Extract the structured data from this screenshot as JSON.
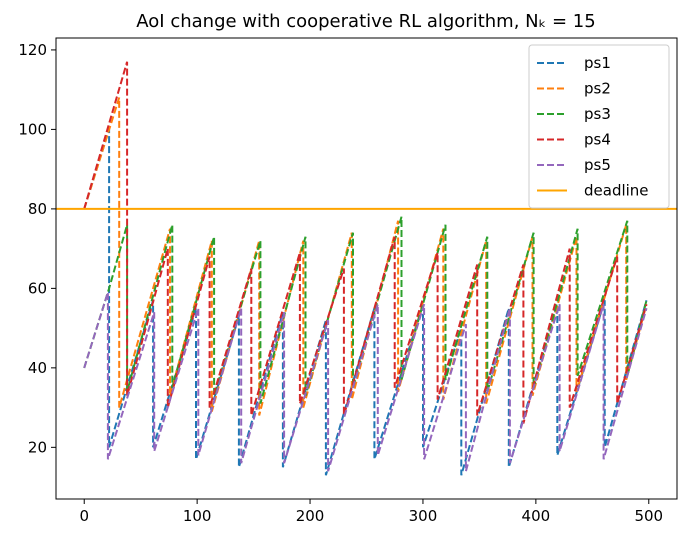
{
  "chart_data": {
    "type": "line",
    "title": "AoI change with cooperative RL algorithm, Nₖ = 15",
    "xlabel": "",
    "ylabel": "",
    "xlim": [
      -25,
      525
    ],
    "ylim": [
      7,
      123
    ],
    "xticks": [
      0,
      100,
      200,
      300,
      400,
      500
    ],
    "yticks": [
      20,
      40,
      60,
      80,
      100,
      120
    ],
    "grid": false,
    "legend_position": "top-right",
    "deadline": {
      "name": "deadline",
      "value": 80,
      "color": "#ffa500"
    },
    "series": [
      {
        "name": "ps1",
        "color": "#1f77b4",
        "dash": true,
        "points": [
          [
            0,
            80
          ],
          [
            22,
            100
          ],
          [
            22,
            20
          ],
          [
            61,
            57
          ],
          [
            61,
            20
          ],
          [
            99,
            55
          ],
          [
            99,
            17
          ],
          [
            137,
            53
          ],
          [
            137,
            15
          ],
          [
            176,
            54
          ],
          [
            176,
            15
          ],
          [
            214,
            52
          ],
          [
            214,
            13
          ],
          [
            257,
            55
          ],
          [
            257,
            17
          ],
          [
            300,
            56
          ],
          [
            300,
            20
          ],
          [
            334,
            50
          ],
          [
            334,
            13
          ],
          [
            376,
            55
          ],
          [
            376,
            15
          ],
          [
            419,
            56
          ],
          [
            419,
            18
          ],
          [
            461,
            57
          ],
          [
            461,
            20
          ],
          [
            498,
            57
          ]
        ]
      },
      {
        "name": "ps2",
        "color": "#ff7f0e",
        "dash": true,
        "points": [
          [
            0,
            80
          ],
          [
            31,
            108
          ],
          [
            31,
            30
          ],
          [
            76,
            75
          ],
          [
            76,
            33
          ],
          [
            113,
            72
          ],
          [
            113,
            29
          ],
          [
            155,
            72
          ],
          [
            155,
            28
          ],
          [
            194,
            72
          ],
          [
            194,
            30
          ],
          [
            237,
            74
          ],
          [
            237,
            32
          ],
          [
            278,
            77
          ],
          [
            278,
            34
          ],
          [
            318,
            75
          ],
          [
            318,
            32
          ],
          [
            356,
            72
          ],
          [
            356,
            31
          ],
          [
            397,
            73
          ],
          [
            397,
            33
          ],
          [
            436,
            73
          ],
          [
            436,
            34
          ],
          [
            480,
            76
          ],
          [
            480,
            37
          ],
          [
            498,
            56
          ]
        ]
      },
      {
        "name": "ps3",
        "color": "#2ca02c",
        "dash": true,
        "points": [
          [
            0,
            40
          ],
          [
            22,
            60
          ],
          [
            38,
            76
          ],
          [
            38,
            34
          ],
          [
            78,
            76
          ],
          [
            78,
            35
          ],
          [
            115,
            73
          ],
          [
            115,
            33
          ],
          [
            156,
            72
          ],
          [
            156,
            31
          ],
          [
            196,
            73
          ],
          [
            196,
            33
          ],
          [
            238,
            74
          ],
          [
            238,
            35
          ],
          [
            281,
            78
          ],
          [
            281,
            37
          ],
          [
            320,
            76
          ],
          [
            320,
            37
          ],
          [
            357,
            73
          ],
          [
            357,
            34
          ],
          [
            398,
            74
          ],
          [
            398,
            35
          ],
          [
            437,
            75
          ],
          [
            437,
            38
          ],
          [
            481,
            77
          ],
          [
            481,
            38
          ],
          [
            498,
            57
          ]
        ]
      },
      {
        "name": "ps4",
        "color": "#d62728",
        "dash": true,
        "points": [
          [
            0,
            80
          ],
          [
            38,
            117
          ],
          [
            38,
            33
          ],
          [
            74,
            70
          ],
          [
            74,
            30
          ],
          [
            111,
            68
          ],
          [
            111,
            30
          ],
          [
            148,
            65
          ],
          [
            148,
            28
          ],
          [
            191,
            69
          ],
          [
            191,
            31
          ],
          [
            230,
            65
          ],
          [
            230,
            28
          ],
          [
            275,
            73
          ],
          [
            275,
            35
          ],
          [
            313,
            69
          ],
          [
            313,
            32
          ],
          [
            348,
            66
          ],
          [
            348,
            28
          ],
          [
            389,
            66
          ],
          [
            389,
            26
          ],
          [
            430,
            70
          ],
          [
            430,
            30
          ],
          [
            472,
            68
          ],
          [
            472,
            31
          ],
          [
            498,
            56
          ]
        ]
      },
      {
        "name": "ps5",
        "color": "#9467bd",
        "dash": true,
        "points": [
          [
            0,
            40
          ],
          [
            21,
            59
          ],
          [
            21,
            17
          ],
          [
            62,
            54
          ],
          [
            62,
            19
          ],
          [
            101,
            55
          ],
          [
            101,
            18
          ],
          [
            139,
            55
          ],
          [
            139,
            16
          ],
          [
            177,
            54
          ],
          [
            177,
            16
          ],
          [
            216,
            52
          ],
          [
            216,
            14
          ],
          [
            260,
            56
          ],
          [
            260,
            18
          ],
          [
            301,
            56
          ],
          [
            301,
            17
          ],
          [
            338,
            51
          ],
          [
            338,
            14
          ],
          [
            377,
            55
          ],
          [
            377,
            16
          ],
          [
            421,
            56
          ],
          [
            421,
            19
          ],
          [
            460,
            56
          ],
          [
            460,
            17
          ],
          [
            498,
            55
          ]
        ]
      }
    ]
  }
}
